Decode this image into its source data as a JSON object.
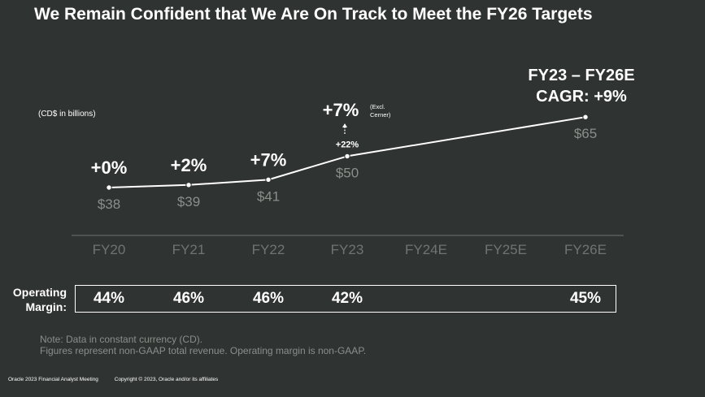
{
  "title": "We Remain Confident that We Are On Track to Meet the FY26 Targets",
  "unit_label": "(CD$ in billions)",
  "cagr": {
    "line1": "FY23 – FY26E",
    "line2": "CAGR: +9%"
  },
  "chart_data": {
    "type": "line",
    "categories": [
      "FY20",
      "FY21",
      "FY22",
      "FY23",
      "FY24E",
      "FY25E",
      "FY26E"
    ],
    "series": [
      {
        "values": [
          38,
          39,
          41,
          50,
          null,
          null,
          65
        ]
      }
    ],
    "value_labels": [
      "$38",
      "$39",
      "$41",
      "$50",
      "",
      "",
      "$65"
    ],
    "growth_labels": [
      "+0%",
      "+2%",
      "+7%",
      "+22%",
      "",
      "",
      ""
    ],
    "excl_cerner": {
      "label": "+7%",
      "note_line1": "(Excl.",
      "note_line2": "Cerner)"
    },
    "line_color": "#ffffff",
    "value_label_color": "#8a8f8c",
    "axis_label_color": "#6f7471"
  },
  "operating_margin": {
    "label_line1": "Operating",
    "label_line2": "Margin:",
    "values": [
      "44%",
      "46%",
      "46%",
      "42%",
      "",
      "",
      "45%"
    ]
  },
  "notes": {
    "line1": "Note: Data in constant currency (CD).",
    "line2": "Figures represent non-GAAP total revenue. Operating margin is non-GAAP."
  },
  "footer": {
    "left": "Oracle  2023 Financial Analyst Meeting",
    "right": "Copyright © 2023, Oracle and/or its affiliates"
  }
}
